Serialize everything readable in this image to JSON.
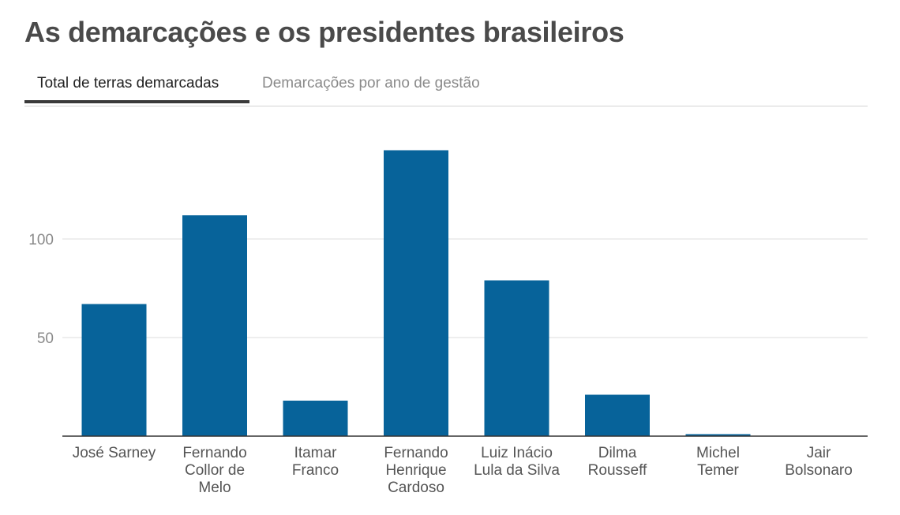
{
  "title": "As demarcações e os presidentes brasileiros",
  "tabs": [
    {
      "label": "Total de terras demarcadas",
      "active": true
    },
    {
      "label": "Demarcações por ano de gestão",
      "active": false
    }
  ],
  "colors": {
    "bar": "#07639a",
    "gridline": "#dcdcdc",
    "axis": "#333333"
  },
  "chart_data": {
    "type": "bar",
    "title": "Total de terras demarcadas",
    "xlabel": "",
    "ylabel": "",
    "ylim": [
      0,
      150
    ],
    "yticks": [
      50,
      100
    ],
    "grid": true,
    "categories": [
      [
        "José Sarney"
      ],
      [
        "Fernando",
        "Collor de",
        "Melo"
      ],
      [
        "Itamar",
        "Franco"
      ],
      [
        "Fernando",
        "Henrique",
        "Cardoso"
      ],
      [
        "Luiz Inácio",
        "Lula da Silva"
      ],
      [
        "Dilma",
        "Rousseff"
      ],
      [
        "Michel",
        "Temer"
      ],
      [
        "Jair",
        "Bolsonaro"
      ]
    ],
    "values": [
      67,
      112,
      18,
      145,
      79,
      21,
      1,
      0
    ]
  }
}
